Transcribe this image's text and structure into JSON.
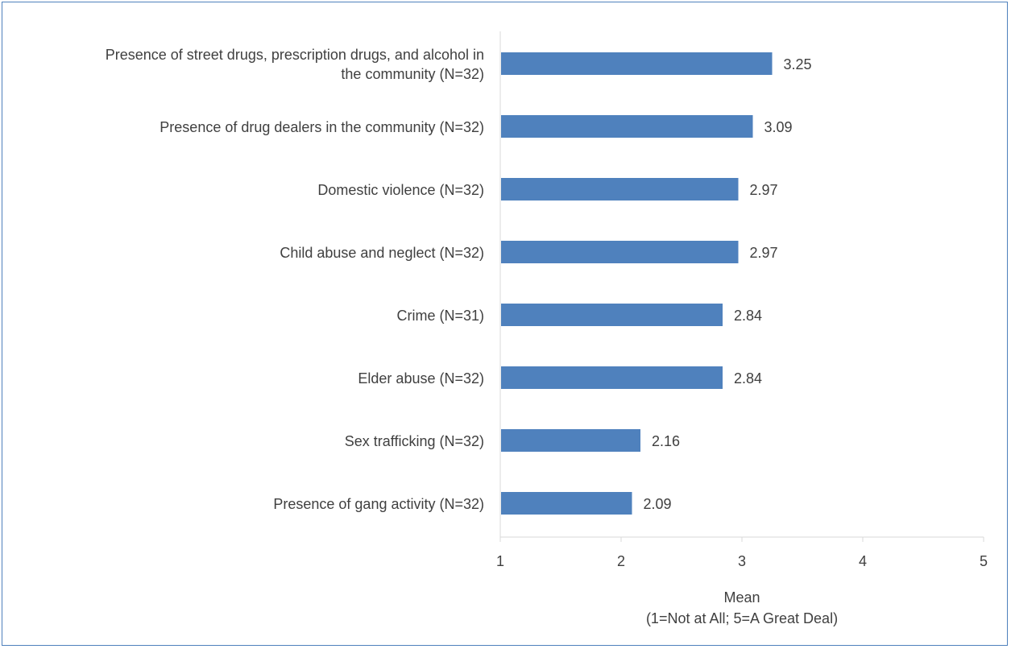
{
  "chart_data": {
    "type": "bar",
    "orientation": "horizontal",
    "categories": [
      [
        "Presence of street drugs, prescription drugs, and alcohol in",
        "the community  (N=32)"
      ],
      [
        "Presence of drug dealers in the community  (N=32)"
      ],
      [
        "Domestic violence  (N=32)"
      ],
      [
        "Child abuse and neglect (N=32)"
      ],
      [
        "Crime  (N=31)"
      ],
      [
        "Elder abuse  (N=32)"
      ],
      [
        "Sex trafficking  (N=32)"
      ],
      [
        "Presence of gang activity  (N=32)"
      ]
    ],
    "values": [
      3.25,
      3.09,
      2.97,
      2.97,
      2.84,
      2.84,
      2.16,
      2.09
    ],
    "value_labels": [
      "3.25",
      "3.09",
      "2.97",
      "2.97",
      "2.84",
      "2.84",
      "2.16",
      "2.09"
    ],
    "xlim": [
      1,
      5
    ],
    "xticks": [
      1,
      2,
      3,
      4,
      5
    ],
    "xlabel": [
      "Mean",
      "(1=Not at All; 5=A Great Deal)"
    ],
    "grid": false,
    "legend": "none",
    "bar_color": "#4f81bd"
  }
}
